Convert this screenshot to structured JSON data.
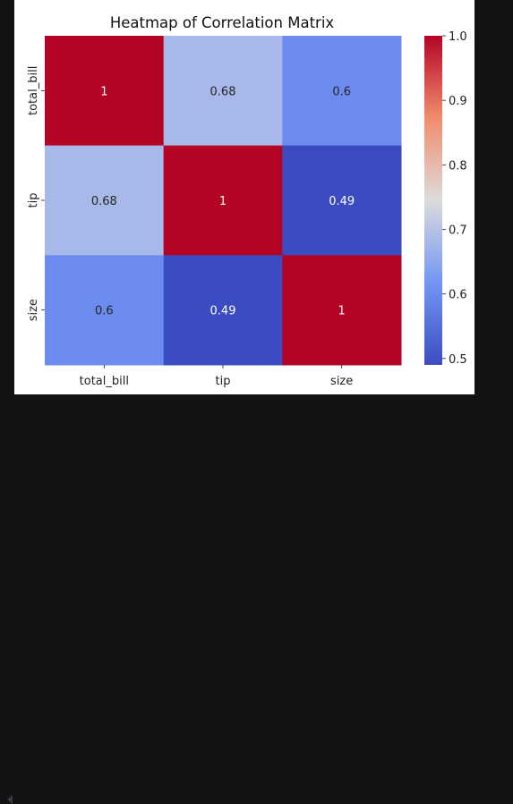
{
  "chart_data": {
    "type": "heatmap",
    "title": "Heatmap of Correlation Matrix",
    "xlabel": "",
    "ylabel": "",
    "row_labels": [
      "total_bill",
      "tip",
      "size"
    ],
    "col_labels": [
      "total_bill",
      "tip",
      "size"
    ],
    "values": [
      [
        1,
        0.68,
        0.6
      ],
      [
        0.68,
        1,
        0.49
      ],
      [
        0.6,
        0.49,
        1
      ]
    ],
    "cell_labels": [
      [
        "1",
        "0.68",
        "0.6"
      ],
      [
        "0.68",
        "1",
        "0.49"
      ],
      [
        "0.6",
        "0.49",
        "1"
      ]
    ],
    "colormap": "coolwarm",
    "colorbar": {
      "range": [
        0.49,
        1.0
      ],
      "ticks": [
        0.5,
        0.6,
        0.7,
        0.8,
        0.9,
        1.0
      ],
      "tick_labels": [
        "0.5",
        "0.6",
        "0.7",
        "0.8",
        "0.9",
        "1.0"
      ]
    }
  }
}
